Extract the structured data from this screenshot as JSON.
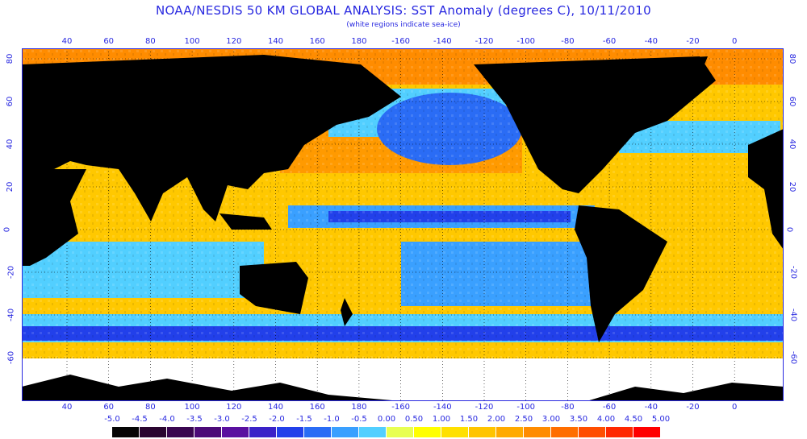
{
  "title": "NOAA/NESDIS 50 KM GLOBAL ANALYSIS: SST Anomaly (degrees C), 10/11/2010",
  "subtitle": "(white regions indicate sea-ice)",
  "lon_labels": [
    "40",
    "60",
    "80",
    "100",
    "120",
    "140",
    "160",
    "180",
    "-160",
    "-140",
    "-120",
    "-100",
    "-80",
    "-60",
    "-40",
    "-20",
    "0"
  ],
  "lat_labels": [
    "80",
    "60",
    "40",
    "20",
    "0",
    "-20",
    "-40",
    "-60"
  ],
  "scale_labels": [
    "-5.0",
    "-4.5",
    "-4.0",
    "-3.5",
    "-3.0",
    "-2.5",
    "-2.0",
    "-1.5",
    "-1.0",
    "-0.5",
    "0.00",
    "0.50",
    "1.00",
    "1.50",
    "2.00",
    "2.50",
    "3.00",
    "3.50",
    "4.00",
    "4.50",
    "5.00"
  ],
  "scale_colors": [
    "#050505",
    "#2a0530",
    "#3a0650",
    "#4c0a78",
    "#5a10a0",
    "#3a22c8",
    "#2240ea",
    "#2a6cf5",
    "#3aa0ff",
    "#52cfff",
    "#e8ff52",
    "#ffff00",
    "#ffe000",
    "#ffc400",
    "#ffaa00",
    "#ff8c00",
    "#ff6e00",
    "#ff4e00",
    "#ff2800",
    "#ff0000"
  ],
  "colors": {
    "land": "#000000",
    "ice": "#ffffff",
    "border": "#2828e0"
  }
}
